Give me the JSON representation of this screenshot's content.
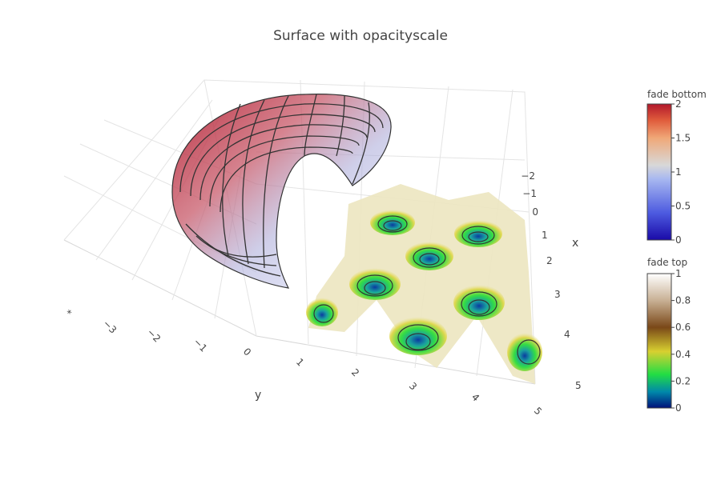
{
  "chart_data": {
    "type": "surface3d",
    "title": "Surface with opacityscale",
    "axes": {
      "x": {
        "label": "x",
        "ticks": [
          "−2",
          "−1",
          "0",
          "1",
          "2",
          "3",
          "4",
          "5"
        ]
      },
      "y": {
        "label": "y",
        "ticks": [
          "*",
          "−3",
          "−2",
          "−1",
          "0",
          "1",
          "2",
          "3",
          "4",
          "5"
        ]
      }
    },
    "grid": true,
    "colorbars": [
      {
        "title": "fade bottom",
        "ticks": [
          "2",
          "1.5",
          "1",
          "0.5",
          "0"
        ],
        "range": [
          0,
          2
        ],
        "colors": [
          "#1a0aa8",
          "#4d5be0",
          "#a8b8f0",
          "#d8d8d8",
          "#f0a878",
          "#e05c3c",
          "#b2182b"
        ]
      },
      {
        "title": "fade top",
        "ticks": [
          "1",
          "0.8",
          "0.6",
          "0.4",
          "0.2",
          "0"
        ],
        "range": [
          0,
          1
        ],
        "colors": [
          "#00107a",
          "#0088aa",
          "#22dd44",
          "#d8d030",
          "#7a4818",
          "#c8b094",
          "#ffffff"
        ]
      }
    ],
    "surfaces": [
      {
        "name": "",
        "shape": "torus-section",
        "colorscale": "fade bottom",
        "contours": true
      },
      {
        "name": "",
        "shape": "egg-crate",
        "colorscale": "fade top",
        "contours": true
      }
    ]
  }
}
